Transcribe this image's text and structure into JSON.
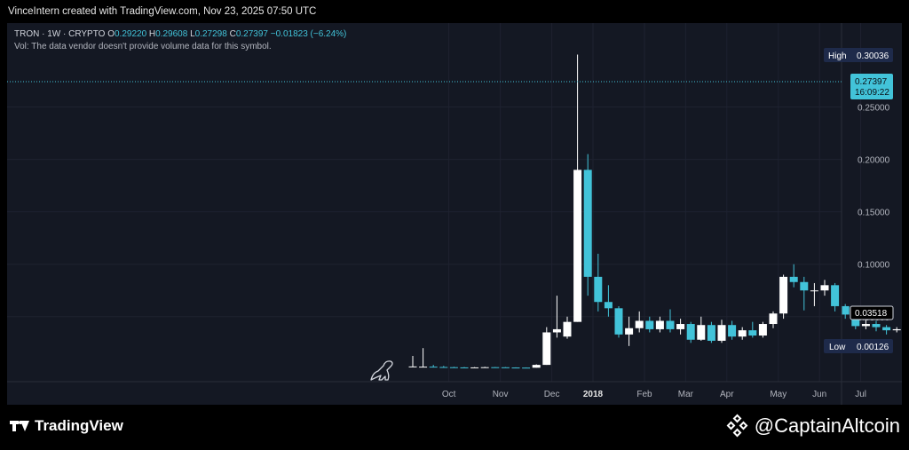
{
  "header": {
    "author_line": "VinceIntern created with TradingView.com, Nov 23, 2025 07:50 UTC"
  },
  "legend": {
    "symbol": "TRON · 1W · CRYPTO",
    "o_label": "O",
    "o_value": "0.29220",
    "h_label": "H",
    "h_value": "0.29608",
    "l_label": "L",
    "l_value": "0.27298",
    "c_label": "C",
    "c_value": "0.27397",
    "change": "−0.01823 (−6.24%)",
    "vol_note": "Vol: The data vendor doesn't provide volume data for this symbol."
  },
  "markers": {
    "high_label": "High",
    "high_value": "0.30036",
    "last_price": "0.27397",
    "countdown": "16:09:22",
    "crosshair_price": "0.03518",
    "low_label": "Low",
    "low_value": "0.00126"
  },
  "colors": {
    "up": "#ffffff",
    "down": "#42c3d9",
    "background": "#141823",
    "grid": "#1e2230",
    "axis_text": "#b2b5be"
  },
  "footer": {
    "tradingview": "TradingView",
    "watermark": "@CaptainAltcoin"
  },
  "chart_data": {
    "type": "candlestick",
    "ylim": [
      -0.012,
      0.33
    ],
    "y_ticks": [
      0.05,
      0.1,
      0.15,
      0.2,
      0.25
    ],
    "y_tick_labels": [
      "0.05000",
      "0.10000",
      "0.15000",
      "0.20000",
      "0.25000"
    ],
    "x_tick_labels": [
      "Oct",
      "Nov",
      "Dec",
      "2018",
      "Feb",
      "Mar",
      "Apr",
      "May",
      "Jun",
      "Jul"
    ],
    "x_tick_index": [
      3.5,
      8.5,
      13.5,
      17.5,
      22.5,
      26.5,
      30.5,
      35.5,
      39.5,
      43.5
    ],
    "candles": [
      [
        0.0018,
        0.0025,
        0.0125,
        0.0018
      ],
      [
        0.0022,
        0.0023,
        0.02,
        0.0015
      ],
      [
        0.0023,
        0.002,
        0.004,
        0.0015
      ],
      [
        0.002,
        0.0018,
        0.003,
        0.0013
      ],
      [
        0.0018,
        0.0016,
        0.0022,
        0.0013
      ],
      [
        0.0016,
        0.0015,
        0.002,
        0.0013
      ],
      [
        0.0015,
        0.0016,
        0.0019,
        0.0013
      ],
      [
        0.0016,
        0.0018,
        0.0022,
        0.0014
      ],
      [
        0.0018,
        0.0017,
        0.002,
        0.0014
      ],
      [
        0.0017,
        0.0015,
        0.0019,
        0.0013
      ],
      [
        0.0015,
        0.0014,
        0.0017,
        0.0013
      ],
      [
        0.0014,
        0.0013,
        0.0016,
        0.0013
      ],
      [
        0.0013,
        0.004,
        0.0045,
        0.0013
      ],
      [
        0.004,
        0.035,
        0.04,
        0.004
      ],
      [
        0.035,
        0.038,
        0.07,
        0.03
      ],
      [
        0.031,
        0.045,
        0.05,
        0.029
      ],
      [
        0.045,
        0.19,
        0.3,
        0.045
      ],
      [
        0.19,
        0.088,
        0.205,
        0.07
      ],
      [
        0.088,
        0.064,
        0.11,
        0.055
      ],
      [
        0.064,
        0.058,
        0.08,
        0.05
      ],
      [
        0.058,
        0.033,
        0.06,
        0.03
      ],
      [
        0.033,
        0.039,
        0.05,
        0.022
      ],
      [
        0.039,
        0.046,
        0.055,
        0.035
      ],
      [
        0.046,
        0.038,
        0.05,
        0.035
      ],
      [
        0.038,
        0.046,
        0.05,
        0.035
      ],
      [
        0.046,
        0.038,
        0.057,
        0.035
      ],
      [
        0.038,
        0.043,
        0.048,
        0.033
      ],
      [
        0.043,
        0.028,
        0.045,
        0.025
      ],
      [
        0.028,
        0.042,
        0.05,
        0.027
      ],
      [
        0.042,
        0.027,
        0.045,
        0.025
      ],
      [
        0.027,
        0.042,
        0.047,
        0.025
      ],
      [
        0.042,
        0.031,
        0.046,
        0.028
      ],
      [
        0.031,
        0.037,
        0.04,
        0.028
      ],
      [
        0.037,
        0.032,
        0.045,
        0.03
      ],
      [
        0.032,
        0.043,
        0.045,
        0.03
      ],
      [
        0.043,
        0.053,
        0.055,
        0.039
      ],
      [
        0.053,
        0.088,
        0.09,
        0.048
      ],
      [
        0.088,
        0.083,
        0.1,
        0.078
      ],
      [
        0.083,
        0.075,
        0.088,
        0.056
      ],
      [
        0.075,
        0.075,
        0.082,
        0.06
      ],
      [
        0.075,
        0.08,
        0.085,
        0.07
      ],
      [
        0.08,
        0.06,
        0.082,
        0.055
      ],
      [
        0.06,
        0.052,
        0.062,
        0.048
      ],
      [
        0.052,
        0.041,
        0.055,
        0.038
      ],
      [
        0.041,
        0.043,
        0.047,
        0.038
      ],
      [
        0.043,
        0.04,
        0.046,
        0.036
      ],
      [
        0.04,
        0.037,
        0.042,
        0.033
      ],
      [
        0.037,
        0.038,
        0.04,
        0.035
      ],
      [
        0.038,
        0.036,
        0.039,
        0.033
      ],
      [
        0.036,
        0.034,
        0.037,
        0.032
      ]
    ]
  }
}
